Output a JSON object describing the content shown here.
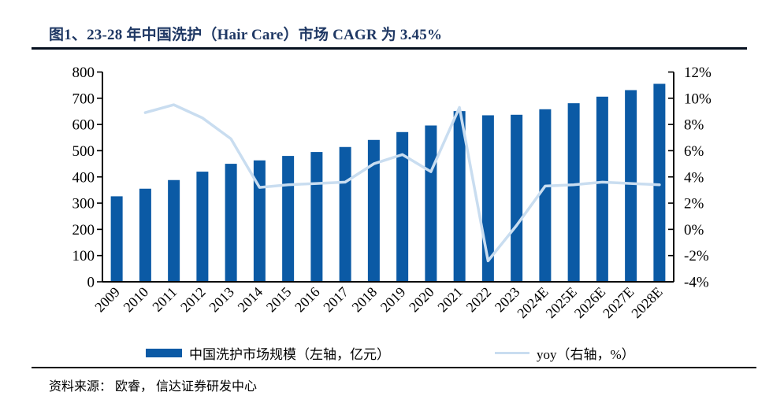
{
  "figure": {
    "title": "图1、23-28 年中国洗护（Hair Care）市场 CAGR 为 3.45%",
    "source": "资料来源： 欧睿， 信达证券研发中心"
  },
  "chart_data": {
    "type": "bar+line",
    "title": "图1、23-28 年中国洗护（Hair Care）市场 CAGR 为 3.45%",
    "categories": [
      "2009",
      "2010",
      "2011",
      "2012",
      "2013",
      "2014",
      "2015",
      "2016",
      "2017",
      "2018",
      "2019",
      "2020",
      "2021",
      "2022",
      "2023",
      "2024E",
      "2025E",
      "2026E",
      "2027E",
      "2028E"
    ],
    "series": [
      {
        "name": "中国洗护市场规模（左轴，亿元）",
        "type": "bar",
        "axis": "left",
        "color": "#0b5aa5",
        "values": [
          326,
          355,
          388,
          420,
          450,
          463,
          480,
          495,
          514,
          541,
          571,
          596,
          651,
          635,
          637,
          658,
          681,
          706,
          731,
          755
        ]
      },
      {
        "name": "yoy（右轴，%）",
        "type": "line",
        "axis": "right",
        "color": "#c9ddf0",
        "values": [
          null,
          8.9,
          9.5,
          8.5,
          6.9,
          3.2,
          3.4,
          3.5,
          3.6,
          5.0,
          5.7,
          4.4,
          9.3,
          -2.4,
          0.3,
          3.3,
          3.4,
          3.6,
          3.5,
          3.4
        ]
      }
    ],
    "left_axis": {
      "min": 0,
      "max": 800,
      "step": 100,
      "ticks": [
        "0",
        "100",
        "200",
        "300",
        "400",
        "500",
        "600",
        "700",
        "800"
      ]
    },
    "right_axis": {
      "min": -4,
      "max": 12,
      "step": 2,
      "ticks": [
        "-4%",
        "-2%",
        "0%",
        "2%",
        "4%",
        "6%",
        "8%",
        "10%",
        "12%"
      ]
    },
    "grid": "off",
    "legend_position": "bottom",
    "axis_color": "#000000"
  }
}
